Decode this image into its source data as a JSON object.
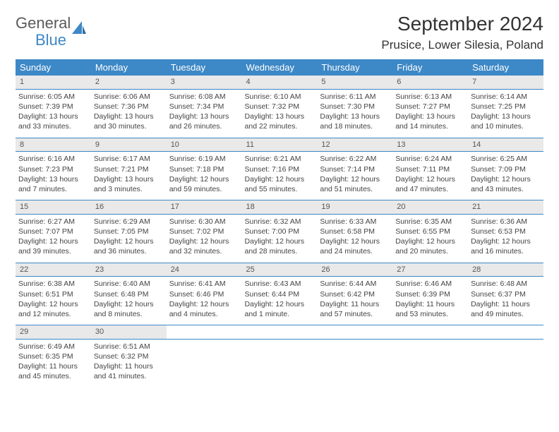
{
  "brand": {
    "general": "General",
    "blue": "Blue"
  },
  "title": "September 2024",
  "location": "Prusice, Lower Silesia, Poland",
  "colors": {
    "header_bg": "#3d88c6",
    "daynum_bg": "#e9e9e9",
    "divider": "#3d88c6",
    "text": "#444444"
  },
  "dow": [
    "Sunday",
    "Monday",
    "Tuesday",
    "Wednesday",
    "Thursday",
    "Friday",
    "Saturday"
  ],
  "weeks": [
    {
      "nums": [
        "1",
        "2",
        "3",
        "4",
        "5",
        "6",
        "7"
      ],
      "cells": [
        {
          "sr": "Sunrise: 6:05 AM",
          "ss": "Sunset: 7:39 PM",
          "d1": "Daylight: 13 hours",
          "d2": "and 33 minutes."
        },
        {
          "sr": "Sunrise: 6:06 AM",
          "ss": "Sunset: 7:36 PM",
          "d1": "Daylight: 13 hours",
          "d2": "and 30 minutes."
        },
        {
          "sr": "Sunrise: 6:08 AM",
          "ss": "Sunset: 7:34 PM",
          "d1": "Daylight: 13 hours",
          "d2": "and 26 minutes."
        },
        {
          "sr": "Sunrise: 6:10 AM",
          "ss": "Sunset: 7:32 PM",
          "d1": "Daylight: 13 hours",
          "d2": "and 22 minutes."
        },
        {
          "sr": "Sunrise: 6:11 AM",
          "ss": "Sunset: 7:30 PM",
          "d1": "Daylight: 13 hours",
          "d2": "and 18 minutes."
        },
        {
          "sr": "Sunrise: 6:13 AM",
          "ss": "Sunset: 7:27 PM",
          "d1": "Daylight: 13 hours",
          "d2": "and 14 minutes."
        },
        {
          "sr": "Sunrise: 6:14 AM",
          "ss": "Sunset: 7:25 PM",
          "d1": "Daylight: 13 hours",
          "d2": "and 10 minutes."
        }
      ]
    },
    {
      "nums": [
        "8",
        "9",
        "10",
        "11",
        "12",
        "13",
        "14"
      ],
      "cells": [
        {
          "sr": "Sunrise: 6:16 AM",
          "ss": "Sunset: 7:23 PM",
          "d1": "Daylight: 13 hours",
          "d2": "and 7 minutes."
        },
        {
          "sr": "Sunrise: 6:17 AM",
          "ss": "Sunset: 7:21 PM",
          "d1": "Daylight: 13 hours",
          "d2": "and 3 minutes."
        },
        {
          "sr": "Sunrise: 6:19 AM",
          "ss": "Sunset: 7:18 PM",
          "d1": "Daylight: 12 hours",
          "d2": "and 59 minutes."
        },
        {
          "sr": "Sunrise: 6:21 AM",
          "ss": "Sunset: 7:16 PM",
          "d1": "Daylight: 12 hours",
          "d2": "and 55 minutes."
        },
        {
          "sr": "Sunrise: 6:22 AM",
          "ss": "Sunset: 7:14 PM",
          "d1": "Daylight: 12 hours",
          "d2": "and 51 minutes."
        },
        {
          "sr": "Sunrise: 6:24 AM",
          "ss": "Sunset: 7:11 PM",
          "d1": "Daylight: 12 hours",
          "d2": "and 47 minutes."
        },
        {
          "sr": "Sunrise: 6:25 AM",
          "ss": "Sunset: 7:09 PM",
          "d1": "Daylight: 12 hours",
          "d2": "and 43 minutes."
        }
      ]
    },
    {
      "nums": [
        "15",
        "16",
        "17",
        "18",
        "19",
        "20",
        "21"
      ],
      "cells": [
        {
          "sr": "Sunrise: 6:27 AM",
          "ss": "Sunset: 7:07 PM",
          "d1": "Daylight: 12 hours",
          "d2": "and 39 minutes."
        },
        {
          "sr": "Sunrise: 6:29 AM",
          "ss": "Sunset: 7:05 PM",
          "d1": "Daylight: 12 hours",
          "d2": "and 36 minutes."
        },
        {
          "sr": "Sunrise: 6:30 AM",
          "ss": "Sunset: 7:02 PM",
          "d1": "Daylight: 12 hours",
          "d2": "and 32 minutes."
        },
        {
          "sr": "Sunrise: 6:32 AM",
          "ss": "Sunset: 7:00 PM",
          "d1": "Daylight: 12 hours",
          "d2": "and 28 minutes."
        },
        {
          "sr": "Sunrise: 6:33 AM",
          "ss": "Sunset: 6:58 PM",
          "d1": "Daylight: 12 hours",
          "d2": "and 24 minutes."
        },
        {
          "sr": "Sunrise: 6:35 AM",
          "ss": "Sunset: 6:55 PM",
          "d1": "Daylight: 12 hours",
          "d2": "and 20 minutes."
        },
        {
          "sr": "Sunrise: 6:36 AM",
          "ss": "Sunset: 6:53 PM",
          "d1": "Daylight: 12 hours",
          "d2": "and 16 minutes."
        }
      ]
    },
    {
      "nums": [
        "22",
        "23",
        "24",
        "25",
        "26",
        "27",
        "28"
      ],
      "cells": [
        {
          "sr": "Sunrise: 6:38 AM",
          "ss": "Sunset: 6:51 PM",
          "d1": "Daylight: 12 hours",
          "d2": "and 12 minutes."
        },
        {
          "sr": "Sunrise: 6:40 AM",
          "ss": "Sunset: 6:48 PM",
          "d1": "Daylight: 12 hours",
          "d2": "and 8 minutes."
        },
        {
          "sr": "Sunrise: 6:41 AM",
          "ss": "Sunset: 6:46 PM",
          "d1": "Daylight: 12 hours",
          "d2": "and 4 minutes."
        },
        {
          "sr": "Sunrise: 6:43 AM",
          "ss": "Sunset: 6:44 PM",
          "d1": "Daylight: 12 hours",
          "d2": "and 1 minute."
        },
        {
          "sr": "Sunrise: 6:44 AM",
          "ss": "Sunset: 6:42 PM",
          "d1": "Daylight: 11 hours",
          "d2": "and 57 minutes."
        },
        {
          "sr": "Sunrise: 6:46 AM",
          "ss": "Sunset: 6:39 PM",
          "d1": "Daylight: 11 hours",
          "d2": "and 53 minutes."
        },
        {
          "sr": "Sunrise: 6:48 AM",
          "ss": "Sunset: 6:37 PM",
          "d1": "Daylight: 11 hours",
          "d2": "and 49 minutes."
        }
      ]
    },
    {
      "nums": [
        "29",
        "30",
        "",
        "",
        "",
        "",
        ""
      ],
      "cells": [
        {
          "sr": "Sunrise: 6:49 AM",
          "ss": "Sunset: 6:35 PM",
          "d1": "Daylight: 11 hours",
          "d2": "and 45 minutes."
        },
        {
          "sr": "Sunrise: 6:51 AM",
          "ss": "Sunset: 6:32 PM",
          "d1": "Daylight: 11 hours",
          "d2": "and 41 minutes."
        },
        null,
        null,
        null,
        null,
        null
      ]
    }
  ]
}
